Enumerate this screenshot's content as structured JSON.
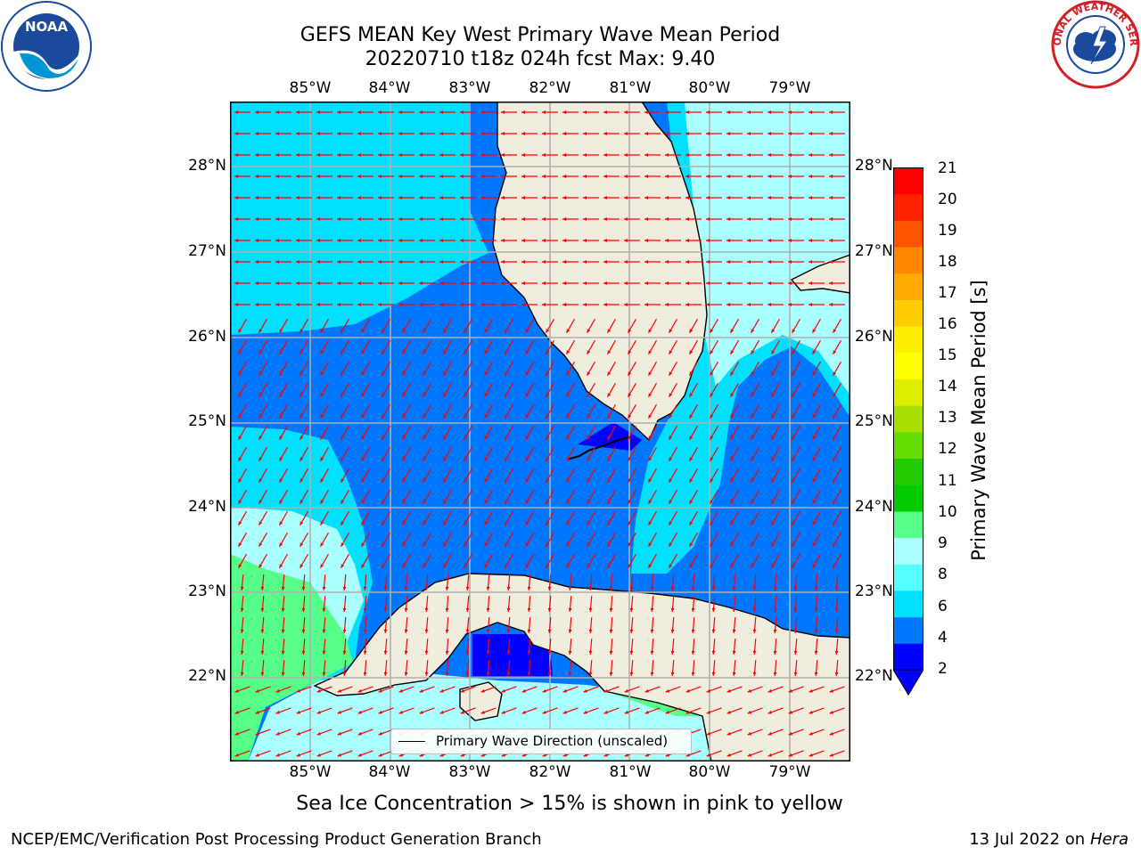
{
  "title": {
    "line1": "GEFS MEAN Key West Primary Wave Mean Period",
    "line2": "20220710 t18z 024h fcst   Max: 9.40"
  },
  "logos": {
    "left": "noaa-logo",
    "left_text": "NOAA",
    "right": "nws-logo",
    "right_text": "NATIONAL WEATHER SERVICE"
  },
  "map": {
    "projection_extent": {
      "lon": [
        -86.0,
        -78.3
      ],
      "lat": [
        21.0,
        28.75
      ]
    },
    "lon_ticks": [
      "85°W",
      "84°W",
      "83°W",
      "82°W",
      "81°W",
      "80°W",
      "79°W"
    ],
    "lat_ticks": [
      "28°N",
      "27°N",
      "26°N",
      "25°N",
      "24°N",
      "23°N",
      "22°N"
    ],
    "land_color": "#efeddd",
    "arrow_color": "#ff0000",
    "legend": "Primary Wave Direction (unscaled)"
  },
  "colorbar": {
    "label": "Primary Wave Mean Period [s]",
    "ticks": [
      "21",
      "20",
      "19",
      "18",
      "17",
      "16",
      "15",
      "14",
      "13",
      "12",
      "11",
      "10",
      "9",
      "8",
      "6",
      "4",
      "2"
    ],
    "colors": [
      "#0000ff",
      "#0077ff",
      "#00e0ff",
      "#55ffff",
      "#aaffff",
      "#55ff88",
      "#00cc00",
      "#22cc00",
      "#66dd00",
      "#aadd00",
      "#ddee00",
      "#ffff00",
      "#ffee00",
      "#ffcc00",
      "#ffaa00",
      "#ff8800",
      "#ff5500",
      "#ff2200",
      "#ff0000"
    ]
  },
  "notes": {
    "sea_ice": "Sea Ice Concentration > 15% is shown in pink to yellow"
  },
  "footer": {
    "left": "NCEP/EMC/Verification Post Processing Product Generation Branch",
    "date": "13 Jul 2022 on ",
    "host": "Hera"
  }
}
